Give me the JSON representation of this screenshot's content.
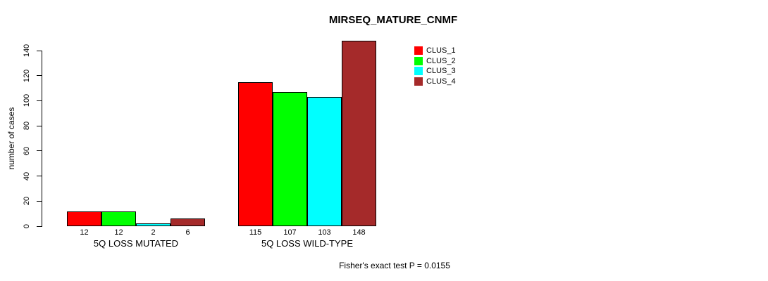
{
  "title": "MIRSEQ_MATURE_CNMF",
  "footer": "Fisher's exact test P = 0.0155",
  "chart_data": {
    "type": "bar",
    "title": "MIRSEQ_MATURE_CNMF",
    "ylabel": "number of cases",
    "xlabel": "",
    "categories": [
      "5Q LOSS MUTATED",
      "5Q LOSS WILD-TYPE"
    ],
    "series": [
      {
        "name": "CLUS_1",
        "color": "#FF0000",
        "values": [
          12,
          115
        ]
      },
      {
        "name": "CLUS_2",
        "color": "#00FF00",
        "values": [
          12,
          107
        ]
      },
      {
        "name": "CLUS_3",
        "color": "#00FFFF",
        "values": [
          2,
          103
        ]
      },
      {
        "name": "CLUS_4",
        "color": "#A52A2A",
        "values": [
          6,
          148
        ]
      }
    ],
    "bar_value_labels": [
      [
        "12",
        "12",
        "2",
        "6"
      ],
      [
        "115",
        "107",
        "103",
        "148"
      ]
    ],
    "yticks": [
      0,
      20,
      40,
      60,
      80,
      100,
      120,
      140
    ],
    "ylim": [
      0,
      140
    ],
    "grid": false,
    "legend_position": "top-right",
    "legend_entries": [
      "CLUS_1",
      "CLUS_2",
      "CLUS_3",
      "CLUS_4"
    ],
    "annotation": "Fisher's exact test P = 0.0155",
    "bar_border_color": "#000000",
    "background_color": "#FFFFFF"
  }
}
